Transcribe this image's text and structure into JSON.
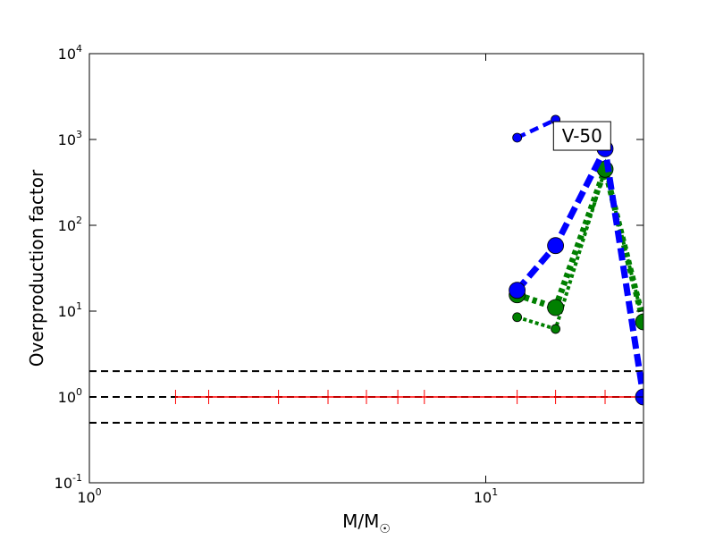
{
  "chart_data": {
    "type": "line",
    "x_label": "M/M",
    "x_label_sub": "☉",
    "y_label": "Overproduction factor",
    "log_x": true,
    "log_y": true,
    "xlim": [
      1,
      25
    ],
    "ylim": [
      0.1,
      10000
    ],
    "xticks": [
      {
        "value": 1,
        "label": "10",
        "exponent": "0"
      },
      {
        "value": 10,
        "label": "10",
        "exponent": "1"
      }
    ],
    "yticks": [
      {
        "value": 0.1,
        "label": "10",
        "exponent": "-1"
      },
      {
        "value": 1,
        "label": "10",
        "exponent": "0"
      },
      {
        "value": 10,
        "label": "10",
        "exponent": "1"
      },
      {
        "value": 100,
        "label": "10",
        "exponent": "2"
      },
      {
        "value": 1000,
        "label": "10",
        "exponent": "3"
      },
      {
        "value": 10000,
        "label": "10",
        "exponent": "4"
      }
    ],
    "hlines": [
      {
        "value": 2,
        "color": "#000000"
      },
      {
        "value": 1,
        "color": "#000000"
      },
      {
        "value": 0.5,
        "color": "#000000"
      }
    ],
    "series": [
      {
        "color": "#ff0000",
        "style": "solid-ticks",
        "x": [
          1.65,
          2,
          3,
          4,
          5,
          6,
          7,
          12,
          15,
          20,
          25
        ],
        "values": [
          1,
          1,
          1,
          1,
          1,
          1,
          1,
          1,
          1,
          1,
          1
        ]
      },
      {
        "color": "#008000",
        "style": "dotted-small",
        "x": [
          12,
          15,
          20,
          25
        ],
        "values": [
          8.5,
          6.2,
          450,
          7.5
        ]
      },
      {
        "color": "#008000",
        "style": "dotted-large",
        "x": [
          12,
          15,
          20,
          25
        ],
        "values": [
          15.5,
          11,
          450,
          7.5
        ]
      },
      {
        "color": "#0000ff",
        "style": "dashed-large",
        "x": [
          12,
          15,
          20,
          25
        ],
        "values": [
          17.5,
          58,
          780,
          1
        ]
      },
      {
        "color": "#0000ff",
        "style": "dashed-small",
        "x": [
          12,
          15
        ],
        "values": [
          1050,
          1700
        ]
      }
    ],
    "annotation": {
      "text": "V-50",
      "x": 17.5,
      "y": 1100
    }
  }
}
